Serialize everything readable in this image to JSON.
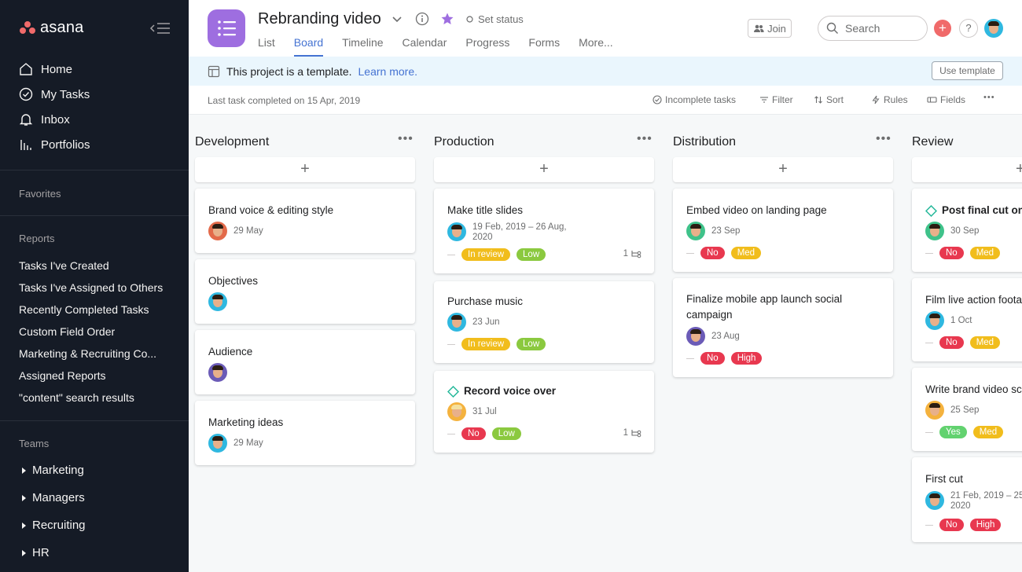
{
  "app": {
    "logo_text": "asana"
  },
  "sidebar": {
    "nav": [
      {
        "label": "Home",
        "icon": "home-icon"
      },
      {
        "label": "My Tasks",
        "icon": "check-circle-icon"
      },
      {
        "label": "Inbox",
        "icon": "bell-icon"
      },
      {
        "label": "Portfolios",
        "icon": "bar-chart-icon"
      }
    ],
    "favorites_title": "Favorites",
    "reports_title": "Reports",
    "reports": [
      "Tasks I've Created",
      "Tasks I've Assigned to Others",
      "Recently Completed Tasks",
      "Custom Field Order",
      "Marketing & Recruiting Co...",
      "Assigned Reports",
      "\"content\" search results"
    ],
    "teams_title": "Teams",
    "teams": [
      "Marketing",
      "Managers",
      "Recruiting",
      "HR"
    ]
  },
  "header": {
    "project_title": "Rebranding video",
    "set_status": "Set status",
    "tabs": [
      "List",
      "Board",
      "Timeline",
      "Calendar",
      "Progress",
      "Forms",
      "More..."
    ],
    "active_tab": "Board",
    "join_label": "Join",
    "search_placeholder": "Search",
    "help_label": "?",
    "add_label": "+"
  },
  "banner": {
    "text": "This project is a template.",
    "link": "Learn more.",
    "use_template": "Use template"
  },
  "toolbar": {
    "last_task": "Last task completed on 15 Apr, 2019",
    "incomplete": "Incomplete tasks",
    "filter": "Filter",
    "sort": "Sort",
    "rules": "Rules",
    "fields": "Fields",
    "more": "•••"
  },
  "colors": {
    "accent": "#4573d2",
    "sidebar_bg": "#151b26",
    "project_icon": "#9e6ee0",
    "tag_in_review": "#f1bd1c",
    "tag_low": "#8bc93f",
    "tag_no": "#e8384f",
    "tag_med": "#f1bd1c",
    "tag_high": "#e8384f",
    "tag_yes": "#62d26f",
    "milestone": "#25b89a"
  },
  "board": {
    "add_label": "+",
    "more_label": "•••",
    "columns": [
      {
        "name": "Development",
        "cards": [
          {
            "title": "Brand voice & editing style",
            "date": "29 May",
            "avatar": "#e36a4a"
          },
          {
            "title": "Objectives",
            "date": "",
            "avatar": "#2fb8e0"
          },
          {
            "title": "Audience",
            "date": "",
            "avatar": "#6b5bb7"
          },
          {
            "title": "Marketing ideas",
            "date": "29 May",
            "avatar": "#2fb8e0"
          }
        ]
      },
      {
        "name": "Production",
        "cards": [
          {
            "title": "Make title slides",
            "date_line1": "19 Feb, 2019 – 26 Aug,",
            "date_line2": "2020",
            "avatar": "#2fb8e0",
            "tags": [
              "In review",
              "Low"
            ],
            "subtasks": "1"
          },
          {
            "title": "Purchase music",
            "date": "23 Jun",
            "avatar": "#2fb8e0",
            "tags": [
              "In review",
              "Low"
            ]
          },
          {
            "title": "Record voice over",
            "date": "31 Jul",
            "avatar": "#f4b23e",
            "milestone": true,
            "tags": [
              "No",
              "Low"
            ],
            "subtasks": "1"
          }
        ]
      },
      {
        "name": "Distribution",
        "cards": [
          {
            "title": "Embed video on landing page",
            "date": "23 Sep",
            "avatar": "#3fc28a",
            "tags": [
              "No",
              "Med"
            ]
          },
          {
            "title_line1": "Finalize mobile app launch social",
            "title_line2": "campaign",
            "date": "23 Aug",
            "avatar": "#6b5bb7",
            "tags": [
              "No",
              "High"
            ]
          }
        ]
      },
      {
        "name": "Review",
        "cards": [
          {
            "title": "Post final cut on",
            "date": "30 Sep",
            "avatar": "#3fc28a",
            "milestone": true,
            "tags": [
              "No",
              "Med"
            ]
          },
          {
            "title": "Film live action foota",
            "date": "1 Oct",
            "avatar": "#2fb8e0",
            "tags": [
              "No",
              "Med"
            ]
          },
          {
            "title": "Write brand video sc",
            "date": "25 Sep",
            "avatar": "#f4b23e",
            "tags": [
              "Yes",
              "Med"
            ]
          },
          {
            "title": "First cut",
            "date_line1": "21 Feb, 2019 – 25",
            "date_line2": "2020",
            "avatar": "#2fb8e0",
            "tags": [
              "No",
              "High"
            ]
          }
        ]
      }
    ]
  }
}
